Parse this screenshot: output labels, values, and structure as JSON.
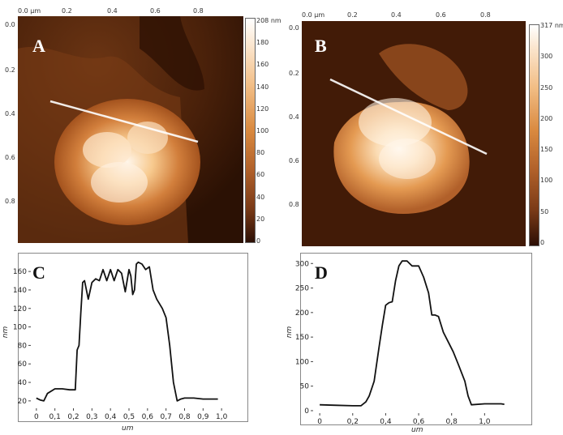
{
  "panels": {
    "A": {
      "label": "A",
      "x_ticks": [
        "0.0 µm",
        "0.2",
        "0.4",
        "0.6",
        "0.8"
      ],
      "y_ticks": [
        "0.0",
        "0.2",
        "0.4",
        "0.6",
        "0.8"
      ],
      "colorbar_ticks": [
        "208 nm",
        "180",
        "160",
        "140",
        "120",
        "100",
        "80",
        "60",
        "40",
        "20",
        "0"
      ]
    },
    "B": {
      "label": "B",
      "x_ticks": [
        "0.0 µm",
        "0.2",
        "0.4",
        "0.6",
        "0.8"
      ],
      "y_ticks": [
        "0.0",
        "0.2",
        "0.4",
        "0.6",
        "0.8"
      ],
      "colorbar_ticks": [
        "317 nm",
        "300",
        "250",
        "200",
        "150",
        "100",
        "50",
        "0"
      ]
    },
    "C": {
      "label": "C"
    },
    "D": {
      "label": "D"
    }
  },
  "chart_data": [
    {
      "panel": "C",
      "type": "line",
      "xlabel": "um",
      "ylabel": "nm",
      "xlim": [
        -0.03,
        1.03
      ],
      "ylim": [
        12,
        175
      ],
      "x_ticks": [
        0,
        0.1,
        0.2,
        0.3,
        0.4,
        0.5,
        0.6,
        0.7,
        0.8,
        0.9,
        1.0
      ],
      "x_tick_labels": [
        "0",
        "0,1",
        "0,2",
        "0,3",
        "0,4",
        "0,5",
        "0,6",
        "0,7",
        "0,8",
        "0,9",
        "1,0"
      ],
      "y_ticks": [
        20,
        40,
        60,
        80,
        100,
        120,
        140,
        160
      ],
      "y_tick_labels": [
        "20",
        "40",
        "60",
        "80",
        "100",
        "120",
        "140",
        "160"
      ],
      "series": [
        {
          "x": [
            0,
            0.02,
            0.04,
            0.06,
            0.1,
            0.14,
            0.18,
            0.21,
            0.22,
            0.23,
            0.24,
            0.25,
            0.26,
            0.28,
            0.3,
            0.32,
            0.34,
            0.36,
            0.38,
            0.4,
            0.42,
            0.44,
            0.46,
            0.48,
            0.5,
            0.51,
            0.52,
            0.53,
            0.54,
            0.55,
            0.57,
            0.59,
            0.61,
            0.63,
            0.65,
            0.68,
            0.7,
            0.72,
            0.74,
            0.76,
            0.78,
            0.8,
            0.85,
            0.9,
            0.95,
            0.98
          ],
          "y": [
            23,
            21,
            20,
            28,
            33,
            33,
            32,
            32,
            75,
            80,
            115,
            148,
            150,
            130,
            148,
            152,
            150,
            162,
            150,
            162,
            150,
            162,
            158,
            138,
            162,
            155,
            135,
            140,
            168,
            170,
            168,
            162,
            165,
            140,
            130,
            120,
            110,
            80,
            40,
            20,
            22,
            23,
            23,
            22,
            22,
            22
          ]
        }
      ]
    },
    {
      "panel": "D",
      "type": "line",
      "xlabel": "um",
      "ylabel": "nm",
      "xlim": [
        -0.04,
        1.2
      ],
      "ylim": [
        -5,
        312
      ],
      "x_ticks": [
        0,
        0.2,
        0.4,
        0.6,
        0.8,
        1.0
      ],
      "x_tick_labels": [
        "0",
        "0,2",
        "0,4",
        "0,6",
        "0,8",
        "1,0"
      ],
      "y_ticks": [
        0,
        50,
        100,
        150,
        200,
        250,
        300
      ],
      "y_tick_labels": [
        "0",
        "50",
        "100",
        "150",
        "200",
        "250",
        "300"
      ],
      "series": [
        {
          "x": [
            0,
            0.1,
            0.2,
            0.25,
            0.28,
            0.3,
            0.33,
            0.36,
            0.38,
            0.4,
            0.42,
            0.44,
            0.46,
            0.48,
            0.5,
            0.53,
            0.56,
            0.6,
            0.63,
            0.66,
            0.68,
            0.7,
            0.72,
            0.75,
            0.78,
            0.81,
            0.84,
            0.88,
            0.9,
            0.92,
            1.0,
            1.1,
            1.12
          ],
          "y": [
            12,
            11,
            10,
            10,
            18,
            30,
            60,
            130,
            175,
            215,
            220,
            222,
            265,
            295,
            305,
            305,
            295,
            295,
            272,
            240,
            195,
            195,
            192,
            160,
            140,
            120,
            95,
            60,
            30,
            12,
            14,
            14,
            13
          ]
        }
      ]
    }
  ]
}
